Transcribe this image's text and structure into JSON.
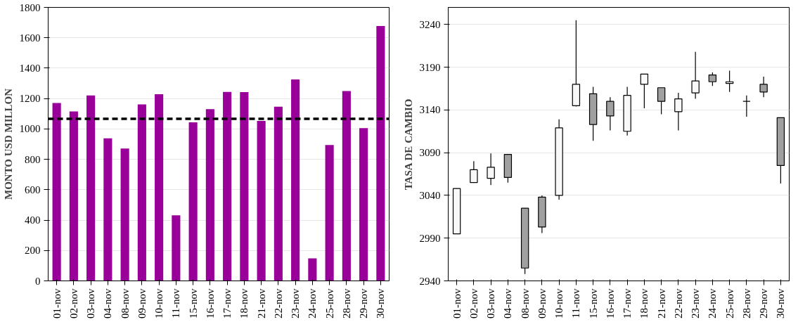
{
  "chart_data": [
    {
      "type": "bar",
      "ylabel": "MONTO USD MILLON",
      "categories": [
        "01-nov",
        "02-nov",
        "03-nov",
        "04-nov",
        "08-nov",
        "09-nov",
        "10-nov",
        "11-nov",
        "15-nov",
        "16-nov",
        "17-nov",
        "18-nov",
        "21-nov",
        "22-nov",
        "23-nov",
        "24-nov",
        "25-nov",
        "28-nov",
        "29-nov",
        "30-nov"
      ],
      "values": [
        1171,
        1115,
        1220,
        938,
        871,
        1162,
        1229,
        432,
        1044,
        1130,
        1243,
        1242,
        1053,
        1146,
        1326,
        148,
        894,
        1249,
        1005,
        1677
      ],
      "color": "#990099",
      "ylim": [
        0,
        1800
      ],
      "yticks": [
        0,
        200,
        400,
        600,
        800,
        1000,
        1200,
        1400,
        1600,
        1800
      ],
      "grid": "y",
      "ref_lines": [
        {
          "axis": "y",
          "value": 1067,
          "color": "#000000",
          "line_style": "dashed"
        }
      ]
    },
    {
      "type": "candlestick",
      "ylabel": "TASA DE CAMBIO",
      "categories": [
        "01-nov",
        "02-nov",
        "03-nov",
        "04-nov",
        "08-nov",
        "09-nov",
        "10-nov",
        "11-nov",
        "15-nov",
        "16-nov",
        "17-nov",
        "18-nov",
        "21-nov",
        "22-nov",
        "23-nov",
        "24-nov",
        "25-nov",
        "28-nov",
        "29-nov",
        "30-nov"
      ],
      "ohlc": [
        [
          2995,
          3048,
          2995,
          3048
        ],
        [
          3055,
          3080,
          3055,
          3070
        ],
        [
          3060,
          3089,
          3052,
          3073
        ],
        [
          3088,
          3088,
          3055,
          3061
        ],
        [
          3025,
          3025,
          2948,
          2955
        ],
        [
          3038,
          3040,
          2996,
          3003
        ],
        [
          3040,
          3129,
          3035,
          3119
        ],
        [
          3145,
          3245,
          3144,
          3170
        ],
        [
          3159,
          3167,
          3104,
          3123
        ],
        [
          3150,
          3155,
          3116,
          3133
        ],
        [
          3115,
          3167,
          3110,
          3157
        ],
        [
          3170,
          3182,
          3142,
          3182
        ],
        [
          3166,
          3166,
          3135,
          3150
        ],
        [
          3138,
          3160,
          3116,
          3153
        ],
        [
          3160,
          3208,
          3153,
          3174
        ],
        [
          3181,
          3184,
          3168,
          3173
        ],
        [
          3171,
          3186,
          3161,
          3173
        ],
        [
          3150,
          3157,
          3132,
          3150
        ],
        [
          3170,
          3179,
          3155,
          3161
        ],
        [
          3131,
          3131,
          3054,
          3075
        ]
      ],
      "ylim": [
        2940,
        3260
      ],
      "yticks": [
        2940,
        2990,
        3040,
        3090,
        3140,
        3190,
        3240
      ],
      "grid": "y"
    }
  ]
}
